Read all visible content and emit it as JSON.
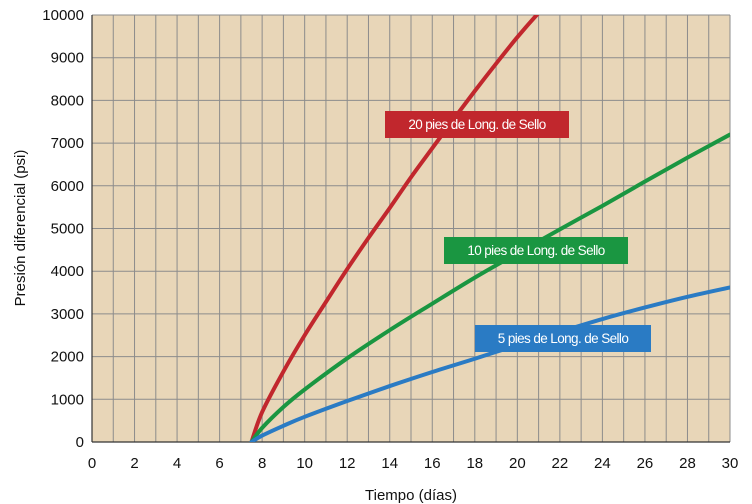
{
  "chart_data": {
    "type": "line",
    "xlabel": "Tiempo (días)",
    "ylabel": "Presión diferencial (psi)",
    "xlim": [
      0,
      30
    ],
    "ylim": [
      0,
      10000
    ],
    "x_ticks": [
      "0",
      "2",
      "4",
      "6",
      "8",
      "10",
      "12",
      "14",
      "16",
      "18",
      "20",
      "22",
      "24",
      "26",
      "28",
      "30"
    ],
    "y_ticks": [
      "0",
      "1000",
      "2000",
      "3000",
      "4000",
      "5000",
      "6000",
      "7000",
      "8000",
      "9000",
      "10000"
    ],
    "grid": true,
    "plot_background": "#e8d6b8",
    "grid_color": "#8c8c8c",
    "series": [
      {
        "name": "20 pies de Long. de Sello",
        "color": "#c1272d",
        "x": [
          7.5,
          8,
          9,
          10,
          11,
          12,
          13,
          14,
          15,
          16,
          17,
          18,
          19,
          20,
          21,
          21.5
        ],
        "y": [
          0,
          700,
          1650,
          2500,
          3280,
          4050,
          4780,
          5480,
          6200,
          6880,
          7560,
          8220,
          8860,
          9480,
          10050,
          10300
        ]
      },
      {
        "name": "10 pies de Long. de Sello",
        "color": "#1a9641",
        "x": [
          7.5,
          8,
          9,
          10,
          12,
          14,
          16,
          18,
          20,
          22,
          24,
          26,
          28,
          30
        ],
        "y": [
          0,
          330,
          820,
          1230,
          1960,
          2620,
          3240,
          3850,
          4420,
          4980,
          5530,
          6100,
          6660,
          7200
        ]
      },
      {
        "name": "5 pies de Long. de Sello",
        "color": "#2a7bc4",
        "x": [
          7.5,
          8,
          9,
          10,
          12,
          14,
          16,
          18,
          20,
          22,
          24,
          26,
          28,
          30
        ],
        "y": [
          0,
          150,
          380,
          590,
          960,
          1310,
          1640,
          1950,
          2270,
          2580,
          2880,
          3150,
          3400,
          3620
        ]
      }
    ]
  }
}
